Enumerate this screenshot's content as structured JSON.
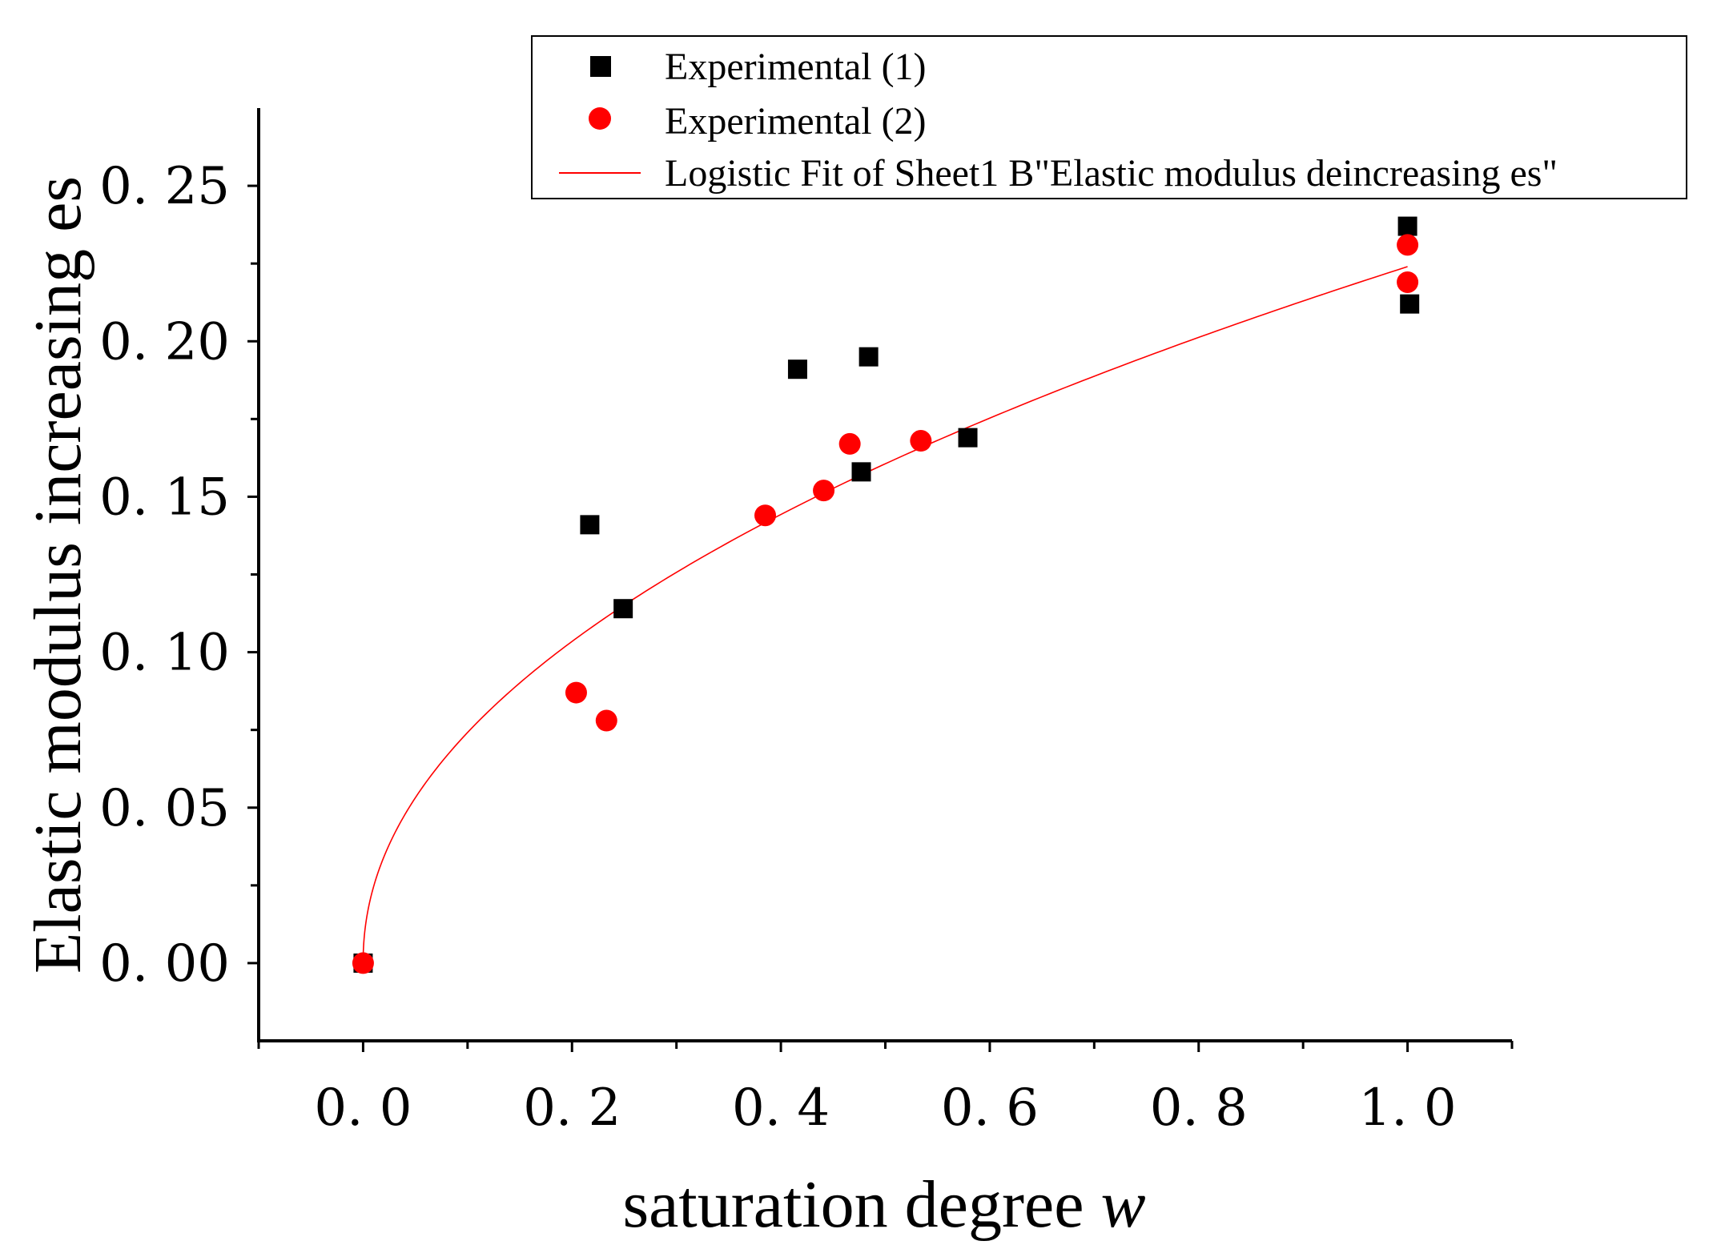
{
  "chart_data": {
    "type": "scatter",
    "title": "",
    "xlabel": "saturation degree",
    "xlabel_var": "w",
    "ylabel": "Elastic modulus increasing es",
    "xlim": [
      -0.1,
      1.1
    ],
    "ylim": [
      -0.025,
      0.275
    ],
    "x_ticks": [
      0.0,
      0.2,
      0.4,
      0.6,
      0.8,
      1.0
    ],
    "x_tick_labels": [
      "0. 0",
      "0. 2",
      "0. 4",
      "0. 6",
      "0. 8",
      "1. 0"
    ],
    "y_ticks": [
      0.0,
      0.05,
      0.1,
      0.15,
      0.2,
      0.25
    ],
    "y_tick_labels": [
      "0. 00",
      "0. 05",
      "0. 10",
      "0. 15",
      "0. 20",
      "0. 25"
    ],
    "grid": false,
    "legend_position": "top-right",
    "series": [
      {
        "name": "Experimental (1)",
        "marker": "square",
        "color": "#000000",
        "x": [
          0.0,
          0.217,
          0.249,
          0.416,
          0.477,
          0.484,
          0.579,
          1.0,
          1.002
        ],
        "y": [
          0.0,
          0.141,
          0.114,
          0.191,
          0.158,
          0.195,
          0.169,
          0.237,
          0.212
        ]
      },
      {
        "name": "Experimental (2)",
        "marker": "circle",
        "color": "#ff0000",
        "x": [
          0.0,
          0.204,
          0.233,
          0.385,
          0.441,
          0.466,
          0.534,
          1.0,
          1.0
        ],
        "y": [
          0.0,
          0.087,
          0.078,
          0.144,
          0.152,
          0.167,
          0.168,
          0.231,
          0.219
        ]
      },
      {
        "name": "Logistic Fit of Sheet1 B\"Elastic modulus deincreasing es\"",
        "type": "line",
        "color": "#ff0000",
        "formula": "0.224 * x^0.48",
        "x_range": [
          0.0,
          1.0
        ]
      }
    ]
  }
}
